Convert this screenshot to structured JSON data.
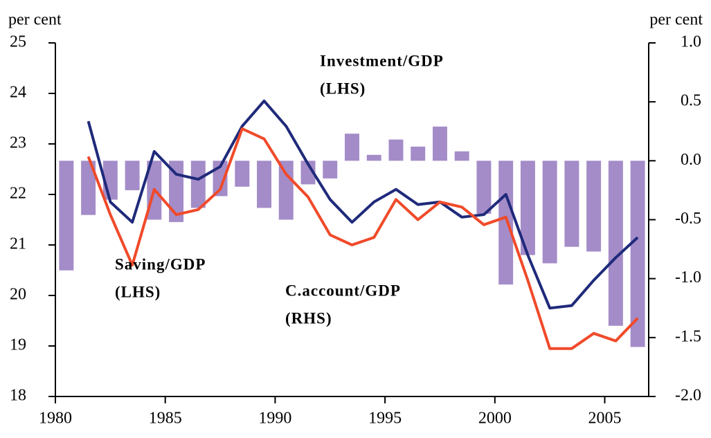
{
  "chart_data": {
    "type": "bar",
    "y_label": "per cent",
    "y2_label": "per cent",
    "xlim": [
      1980,
      2007
    ],
    "xticks": [
      1980,
      1985,
      1990,
      1995,
      2000,
      2005
    ],
    "ylim": [
      18,
      25
    ],
    "yticks": [
      18,
      19,
      20,
      21,
      22,
      23,
      24,
      25
    ],
    "y2lim": [
      -2,
      1
    ],
    "y2ticks": [
      {
        "value": -2,
        "label": "-2.0"
      },
      -1.5,
      {
        "value": -1,
        "label": "-1.0"
      },
      -0.5,
      {
        "value": 0,
        "label": "0.0"
      },
      0.5,
      {
        "value": 1,
        "label": "1.0"
      }
    ],
    "x": [
      1980.5,
      1981.5,
      1982.5,
      1983.5,
      1984.5,
      1985.5,
      1986.5,
      1987.5,
      1988.5,
      1989.5,
      1990.5,
      1991.5,
      1992.5,
      1993.5,
      1994.5,
      1995.5,
      1996.5,
      1997.5,
      1998.5,
      1999.5,
      2000.5,
      2001.5,
      2002.5,
      2003.5,
      2004.5,
      2005.5,
      2006.5
    ],
    "series": [
      {
        "name": "C.account/GDP",
        "note": "(RHS)",
        "type": "bar",
        "axis": "y2",
        "color": "#a48cc8",
        "values": [
          -0.93,
          -0.46,
          -0.33,
          -0.25,
          -0.5,
          -0.52,
          -0.4,
          -0.3,
          -0.22,
          -0.4,
          -0.5,
          -0.2,
          -0.15,
          0.23,
          0.05,
          0.18,
          0.12,
          0.29,
          0.08,
          -0.45,
          -1.05,
          -0.8,
          -0.87,
          -0.73,
          -0.77,
          -1.4,
          -1.58
        ]
      },
      {
        "name": "Investment/GDP",
        "note": "(LHS)",
        "type": "line",
        "color": "#1f2a7a",
        "values": [
          null,
          23.45,
          21.85,
          21.45,
          22.85,
          22.4,
          22.3,
          22.55,
          23.35,
          23.85,
          23.35,
          22.6,
          21.9,
          21.45,
          21.85,
          22.1,
          21.8,
          21.85,
          21.55,
          21.6,
          22.0,
          20.8,
          19.75,
          19.8,
          20.3,
          20.75,
          21.15
        ]
      },
      {
        "name": "Saving/GDP",
        "note": "(LHS)",
        "type": "line",
        "color": "#f04a2a",
        "values": [
          null,
          22.75,
          21.6,
          20.6,
          22.1,
          21.6,
          21.7,
          22.1,
          23.3,
          23.1,
          22.4,
          21.95,
          21.2,
          21.0,
          21.15,
          21.9,
          21.5,
          21.85,
          21.75,
          21.4,
          21.55,
          20.3,
          18.95,
          18.95,
          19.25,
          19.1,
          19.55
        ]
      }
    ]
  }
}
